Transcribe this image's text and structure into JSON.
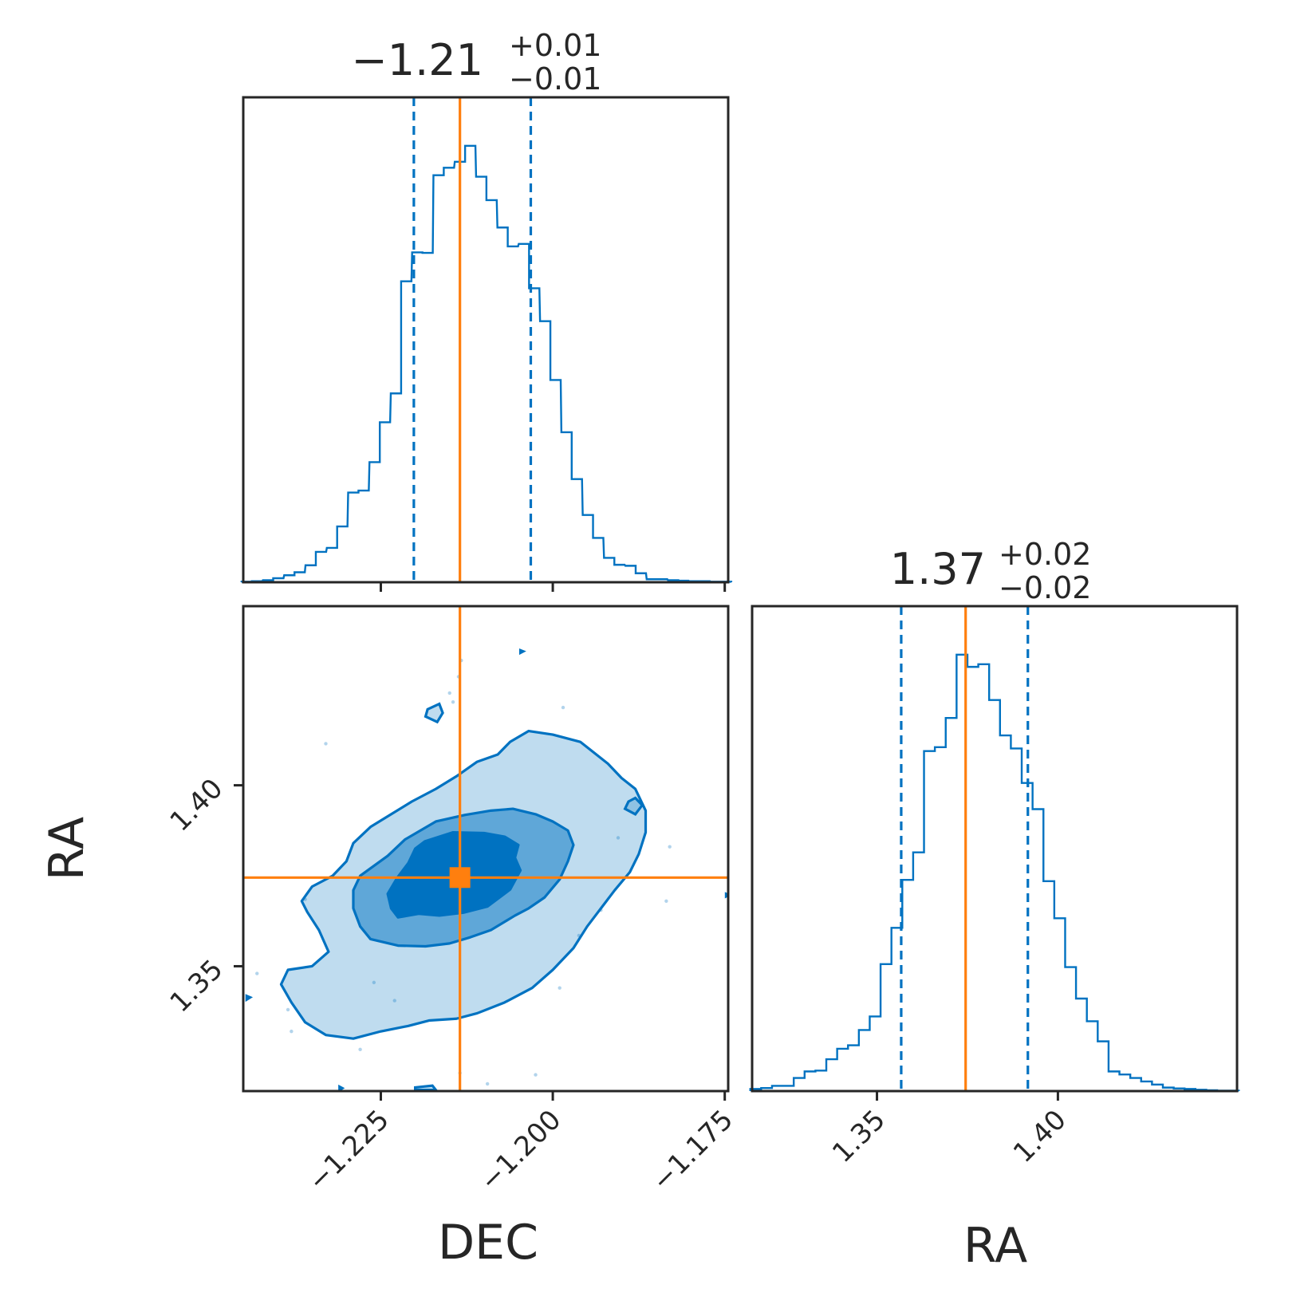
{
  "colors": {
    "posterior": "#0072C1",
    "truth": "#FF7F0E",
    "axes": "#262626"
  },
  "chart_data": {
    "type": "corner",
    "parameters": [
      "DEC",
      "RA"
    ],
    "truths": {
      "DEC": -1.2135,
      "RA": 1.3745
    },
    "titles": {
      "DEC": {
        "median": "−1.21",
        "plus": "+0.01",
        "minus": "−0.01"
      },
      "RA": {
        "median": "1.37",
        "plus": "+0.02",
        "minus": "−0.02"
      }
    },
    "xlabels": {
      "DEC": "DEC",
      "RA": "RA"
    },
    "ylabels": {
      "RA": "RA"
    },
    "dec_axis": {
      "range": [
        -1.245,
        -1.1745
      ],
      "ticks": [
        -1.225,
        -1.2,
        -1.175
      ],
      "tick_labels": [
        "−1.225",
        "−1.200",
        "−1.175"
      ]
    },
    "ra_axis": {
      "range": [
        1.3155,
        1.4495
      ],
      "ticks": [
        1.35,
        1.4
      ],
      "tick_labels": [
        "1.35",
        "1.40"
      ]
    },
    "histograms": [
      {
        "parameter": "DEC",
        "quantiles": [
          -1.2202,
          -1.2032
        ],
        "x": [
          -1.2445,
          -1.243,
          -1.2414,
          -1.2399,
          -1.2383,
          -1.2368,
          -1.2352,
          -1.2337,
          -1.2321,
          -1.2306,
          -1.229,
          -1.2275,
          -1.2259,
          -1.2244,
          -1.2228,
          -1.2213,
          -1.2197,
          -1.2182,
          -1.2166,
          -1.2151,
          -1.2135,
          -1.212,
          -1.2104,
          -1.2089,
          -1.2073,
          -1.2058,
          -1.2042,
          -1.2027,
          -1.2011,
          -1.1996,
          -1.198,
          -1.1965,
          -1.1949,
          -1.1934,
          -1.1918,
          -1.1903,
          -1.1887,
          -1.1872,
          -1.1856,
          -1.1841,
          -1.1825,
          -1.181,
          -1.1794,
          -1.1779,
          -1.1763,
          -1.1748
        ],
        "counts": [
          0.1,
          0.2,
          0.4,
          0.8,
          1.4,
          2.0,
          3.4,
          6.1,
          6.9,
          11.2,
          18.0,
          18.4,
          24.1,
          32.1,
          37.9,
          60.4,
          66.2,
          66.1,
          81.7,
          83.2,
          84.4,
          87.6,
          81.4,
          76.7,
          71.2,
          67.4,
          67.9,
          59.0,
          52.4,
          40.6,
          30.1,
          20.7,
          13.5,
          8.9,
          4.9,
          3.5,
          3.3,
          1.8,
          0.6,
          0.6,
          0.4,
          0.3,
          0.2,
          0.2,
          0.1,
          0.1
        ]
      },
      {
        "parameter": "RA",
        "quantiles": [
          1.3567,
          1.3917
        ],
        "x": [
          1.3165,
          1.3195,
          1.3225,
          1.3255,
          1.3285,
          1.3315,
          1.3345,
          1.3375,
          1.3405,
          1.3435,
          1.3465,
          1.3495,
          1.3525,
          1.3555,
          1.3585,
          1.3615,
          1.3645,
          1.3675,
          1.3705,
          1.3735,
          1.3765,
          1.3795,
          1.3825,
          1.3855,
          1.3885,
          1.3915,
          1.3945,
          1.3975,
          1.4005,
          1.4035,
          1.4065,
          1.4095,
          1.4125,
          1.4155,
          1.4185,
          1.4215,
          1.4245,
          1.4275,
          1.4305,
          1.4335,
          1.4365,
          1.4395,
          1.4425,
          1.4455,
          1.4485
        ],
        "counts": [
          0.5,
          0.7,
          1.2,
          1.2,
          3.0,
          4.5,
          4.7,
          7.3,
          9.7,
          10.5,
          14.0,
          17.1,
          29.1,
          37.4,
          48.4,
          54.7,
          77.9,
          78.8,
          85.5,
          100.0,
          97.2,
          97.8,
          89.6,
          81.5,
          78.5,
          70.6,
          64.6,
          48.1,
          39.6,
          28.4,
          21.2,
          16.0,
          11.4,
          4.5,
          3.8,
          3.0,
          2.2,
          1.5,
          0.8,
          0.6,
          0.5,
          0.3,
          0.2,
          0.1,
          0.1
        ]
      }
    ],
    "density_2d": {
      "x_param": "DEC",
      "y_param": "RA",
      "levels": [
        {
          "name": "1-sigma",
          "fill_opacity": 1.0,
          "points": [
            [
              -1.2186,
              1.3845
            ],
            [
              -1.2145,
              1.387
            ],
            [
              -1.21,
              1.3868
            ],
            [
              -1.207,
              1.3858
            ],
            [
              -1.205,
              1.3835
            ],
            [
              -1.2055,
              1.38
            ],
            [
              -1.2047,
              1.3765
            ],
            [
              -1.2062,
              1.3712
            ],
            [
              -1.2095,
              1.3665
            ],
            [
              -1.213,
              1.3648
            ],
            [
              -1.2165,
              1.364
            ],
            [
              -1.2195,
              1.3645
            ],
            [
              -1.2225,
              1.3635
            ],
            [
              -1.2235,
              1.366
            ],
            [
              -1.224,
              1.37
            ],
            [
              -1.2226,
              1.3745
            ],
            [
              -1.221,
              1.3785
            ],
            [
              -1.22,
              1.3825
            ]
          ]
        },
        {
          "name": "2-sigma",
          "fill_opacity": 0.5,
          "points": [
            [
              -1.224,
              1.3805
            ],
            [
              -1.2215,
              1.385
            ],
            [
              -1.217,
              1.39
            ],
            [
              -1.2128,
              1.3918
            ],
            [
              -1.209,
              1.393
            ],
            [
              -1.2058,
              1.3935
            ],
            [
              -1.2025,
              1.392
            ],
            [
              -1.2,
              1.39
            ],
            [
              -1.1978,
              1.3875
            ],
            [
              -1.197,
              1.3835
            ],
            [
              -1.1978,
              1.379
            ],
            [
              -1.199,
              1.374
            ],
            [
              -1.2012,
              1.369
            ],
            [
              -1.2035,
              1.366
            ],
            [
              -1.2055,
              1.364
            ],
            [
              -1.209,
              1.36
            ],
            [
              -1.212,
              1.358
            ],
            [
              -1.215,
              1.3563
            ],
            [
              -1.2185,
              1.3555
            ],
            [
              -1.2225,
              1.3557
            ],
            [
              -1.2265,
              1.3575
            ],
            [
              -1.228,
              1.361
            ],
            [
              -1.229,
              1.366
            ],
            [
              -1.229,
              1.371
            ],
            [
              -1.228,
              1.375
            ]
          ]
        },
        {
          "name": "3-sigma",
          "fill_opacity": 0.25,
          "points": [
            [
              -1.2326,
              1.354
            ],
            [
              -1.234,
              1.36
            ],
            [
              -1.2357,
              1.365
            ],
            [
              -1.2365,
              1.368
            ],
            [
              -1.235,
              1.372
            ],
            [
              -1.232,
              1.375
            ],
            [
              -1.23,
              1.379
            ],
            [
              -1.229,
              1.384
            ],
            [
              -1.2265,
              1.3885
            ],
            [
              -1.2235,
              1.392
            ],
            [
              -1.2205,
              1.3955
            ],
            [
              -1.217,
              1.399
            ],
            [
              -1.214,
              1.4025
            ],
            [
              -1.211,
              1.4065
            ],
            [
              -1.208,
              1.4085
            ],
            [
              -1.2062,
              1.412
            ],
            [
              -1.2035,
              1.415
            ],
            [
              -1.2,
              1.414
            ],
            [
              -1.196,
              1.412
            ],
            [
              -1.194,
              1.409
            ],
            [
              -1.192,
              1.406
            ],
            [
              -1.19,
              1.402
            ],
            [
              -1.188,
              1.399
            ],
            [
              -1.1865,
              1.393
            ],
            [
              -1.1865,
              1.387
            ],
            [
              -1.1875,
              1.381
            ],
            [
              -1.1888,
              1.376
            ],
            [
              -1.191,
              1.371
            ],
            [
              -1.193,
              1.366
            ],
            [
              -1.195,
              1.361
            ],
            [
              -1.197,
              1.355
            ],
            [
              -1.2,
              1.349
            ],
            [
              -1.203,
              1.344
            ],
            [
              -1.207,
              1.34
            ],
            [
              -1.211,
              1.337
            ],
            [
              -1.214,
              1.3355
            ],
            [
              -1.218,
              1.335
            ],
            [
              -1.221,
              1.3335
            ],
            [
              -1.225,
              1.332
            ],
            [
              -1.229,
              1.33
            ],
            [
              -1.233,
              1.331
            ],
            [
              -1.236,
              1.3345
            ],
            [
              -1.238,
              1.34
            ],
            [
              -1.2395,
              1.345
            ],
            [
              -1.2385,
              1.349
            ],
            [
              -1.235,
              1.35
            ]
          ]
        }
      ],
      "island_contours": [
        [
          [
            -1.2182,
            1.421
          ],
          [
            -1.2165,
            1.4225
          ],
          [
            -1.216,
            1.42
          ],
          [
            -1.2168,
            1.4175
          ],
          [
            -1.2185,
            1.419
          ]
        ],
        [
          [
            -1.189,
            1.3955
          ],
          [
            -1.188,
            1.3965
          ],
          [
            -1.187,
            1.3945
          ],
          [
            -1.188,
            1.392
          ],
          [
            -1.1895,
            1.3935
          ]
        ],
        [
          [
            -1.22,
            1.3165
          ],
          [
            -1.2175,
            1.317
          ],
          [
            -1.217,
            1.3158
          ],
          [
            -1.22,
            1.3158
          ]
        ],
        [
          [
            -1.231,
            1.3167
          ],
          [
            -1.2306,
            1.3163
          ],
          [
            -1.231,
            1.3158
          ]
        ],
        [
          [
            -1.2445,
            1.3418
          ],
          [
            -1.244,
            1.3414
          ],
          [
            -1.2445,
            1.3408
          ]
        ],
        [
          [
            -1.2047,
            1.4373
          ],
          [
            -1.2043,
            1.437
          ],
          [
            -1.2047,
            1.4366
          ]
        ],
        [
          [
            -1.1748,
            1.37
          ],
          [
            -1.1744,
            1.3697
          ],
          [
            -1.1748,
            1.3693
          ]
        ]
      ],
      "outlier_points": [
        [
          -1.2133,
          1.4345
        ],
        [
          -1.2137,
          1.43
        ],
        [
          -1.215,
          1.4255
        ],
        [
          -1.2145,
          1.423
        ],
        [
          -1.226,
          1.3455
        ],
        [
          -1.228,
          1.327
        ],
        [
          -1.2135,
          1.3205
        ],
        [
          -1.2025,
          1.32
        ],
        [
          -1.1962,
          1.3585
        ],
        [
          -1.193,
          1.3655
        ],
        [
          -1.1905,
          1.3855
        ],
        [
          -1.183,
          1.383
        ],
        [
          -1.1835,
          1.368
        ],
        [
          -1.238,
          1.332
        ],
        [
          -1.2385,
          1.338
        ],
        [
          -1.243,
          1.348
        ],
        [
          -1.236,
          1.3685
        ],
        [
          -1.233,
          1.4115
        ],
        [
          -1.223,
          1.3405
        ],
        [
          -1.2095,
          1.3175
        ],
        [
          -1.199,
          1.344
        ],
        [
          -1.1985,
          1.4215
        ]
      ]
    }
  }
}
